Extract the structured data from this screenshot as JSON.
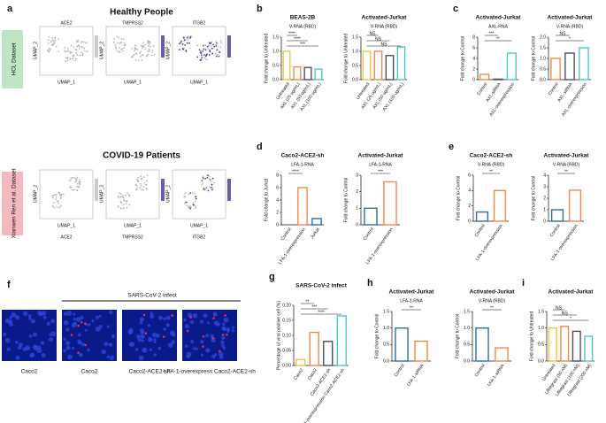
{
  "panel_a": {
    "letter": "a",
    "title_top": "Healthy People",
    "title_bottom": "COVID-19 Patients",
    "dataset_top": "HCL Dataset",
    "dataset_bottom": "Xianwen Ren et al. Dataset",
    "genes": [
      "ACE2",
      "TMPRSS2",
      "ITGB2"
    ],
    "umap_x": "UMAP_1",
    "umap_y": "UMAP_2"
  },
  "panel_f": {
    "letter": "f",
    "group": "SARS-CoV-2 infect",
    "captions": [
      "Caco2",
      "Caco2",
      "Caco2-ACE2-sh",
      "LFA-1-overexpress Caco2-ACE2-sh"
    ]
  },
  "chart_data": [
    {
      "type": "bar",
      "panel": "b",
      "title": "BEAS-2B",
      "subtitle": "V-RNA (RBD)",
      "ylabel": "Fold change to Untreated",
      "categories": [
        "Untreated",
        "AXL (25 ug/mL)",
        "AXL (50 ug/mL)",
        "AXL (100 ug/mL)"
      ],
      "values": [
        1.0,
        0.45,
        0.43,
        0.37
      ],
      "colors": [
        "#f5c242",
        "#f08a4b",
        "#4a5060",
        "#4fc7c9"
      ],
      "ylim": [
        0,
        1.5
      ],
      "yticks": [
        {
          "value": 0,
          "label": "0.0"
        },
        {
          "value": 0.5,
          "label": "0.5"
        },
        {
          "value": 1,
          "label": "1.0"
        },
        {
          "value": 1.5,
          "label": "1.5"
        }
      ],
      "annotations": [
        "****",
        "****",
        "***"
      ]
    },
    {
      "type": "bar",
      "title": "Activated-Jurkat",
      "subtitle": "V-RNA (RBD)",
      "ylabel": "Fold change to Untreated",
      "categories": [
        "Untreated",
        "AXL (25 ug/mL)",
        "AXL (50 ug/mL)",
        "AXL (100 ug/mL)"
      ],
      "values": [
        1.0,
        1.0,
        0.85,
        1.15
      ],
      "colors": [
        "#f5c242",
        "#f08a4b",
        "#4a5060",
        "#4fc7c9"
      ],
      "ylim": [
        0,
        1.5
      ],
      "yticks": [
        {
          "value": 0,
          "label": "0.0"
        },
        {
          "value": 0.5,
          "label": "0.5"
        },
        {
          "value": 1,
          "label": "1.0"
        },
        {
          "value": 1.5,
          "label": "1.5"
        }
      ],
      "annotations": [
        "NS",
        "NS",
        "NS"
      ]
    },
    {
      "type": "bar",
      "panel": "c",
      "title": "Activated-Jurkat",
      "subtitle": "AXL-RNA",
      "ylabel": "Fold change to Control",
      "categories": [
        "Control",
        "AXL-siRNA",
        "AXL-overexpression"
      ],
      "values": [
        1.0,
        0.1,
        5.0
      ],
      "colors": [
        "#f08a4b",
        "#4a5060",
        "#4fc7c9"
      ],
      "ylim": [
        0,
        8
      ],
      "yticks": [
        0,
        2,
        4,
        6,
        8
      ],
      "annotations": [
        "***",
        "**"
      ]
    },
    {
      "type": "bar",
      "title": "Activated-Jurkat",
      "subtitle": "V-RNA (RBD)",
      "ylabel": "Fold change to Control",
      "categories": [
        "Control",
        "AXL-siRNA",
        "AXL-overexpression"
      ],
      "values": [
        1.0,
        1.25,
        1.5
      ],
      "colors": [
        "#f08a4b",
        "#4a5060",
        "#4fc7c9"
      ],
      "ylim": [
        0,
        2
      ],
      "yticks": [
        {
          "value": 0,
          "label": "0.0"
        },
        {
          "value": 0.5,
          "label": "0.5"
        },
        {
          "value": 1,
          "label": "1.0"
        },
        {
          "value": 1.5,
          "label": "1.5"
        },
        {
          "value": 2,
          "label": "2.0"
        }
      ],
      "annotations": [
        "NS",
        "*"
      ]
    },
    {
      "type": "bar",
      "panel": "d",
      "title": "Caco2-ACE2-sh",
      "subtitle": "LFA-1-RNA",
      "ylabel": "Fold change to Jurkat",
      "categories": [
        "Control",
        "LFA-1-overexpression",
        "Jurkat"
      ],
      "values": [
        0,
        6,
        1
      ],
      "colors": [
        "#2e6da4",
        "#f08a4b",
        "#2e6da4"
      ],
      "ylim": [
        0,
        8
      ],
      "yticks": [
        0,
        2,
        4,
        6,
        8
      ],
      "annotations": [
        "****"
      ]
    },
    {
      "type": "bar",
      "title": "Activated-Jurkat",
      "subtitle": "LFA-1-RNA",
      "ylabel": "Fold change to Control",
      "categories": [
        "Control",
        "LFA-1-overexpression"
      ],
      "values": [
        1,
        2.6
      ],
      "colors": [
        "#2e6da4",
        "#f08a4b"
      ],
      "ylim": [
        0,
        3
      ],
      "yticks": [
        0,
        1,
        2,
        3
      ],
      "annotations": [
        "***"
      ]
    },
    {
      "type": "bar",
      "panel": "e",
      "title": "Caco2-ACE2-sh",
      "subtitle": "V-RNA (RBD)",
      "ylabel": "Fold change to Control",
      "categories": [
        "Control",
        "LFA-1-overexpression"
      ],
      "values": [
        1.2,
        4
      ],
      "colors": [
        "#2e6da4",
        "#f08a4b"
      ],
      "ylim": [
        0,
        6
      ],
      "yticks": [
        0,
        2,
        4,
        6
      ],
      "annotations": [
        "**"
      ]
    },
    {
      "type": "bar",
      "title": "Activated-Jurkat",
      "subtitle": "V-RNA (RBD)",
      "ylabel": "Fold change to Control",
      "categories": [
        "Control",
        "LFA-1-overexpression"
      ],
      "values": [
        1,
        2.7
      ],
      "colors": [
        "#2e6da4",
        "#f08a4b"
      ],
      "ylim": [
        0,
        4
      ],
      "yticks": [
        0,
        1,
        2,
        3,
        4
      ],
      "annotations": [
        "**"
      ]
    },
    {
      "type": "bar",
      "panel": "g",
      "title": "SARS-CoV-2 infect",
      "ylabel": "Percentage of viral positive cell (%)",
      "categories": [
        "Caco2",
        "Caco2",
        "Caco2-ACE2-sh",
        "LFA-1-overexpression Caco2-ACE2-sh"
      ],
      "values": [
        0.02,
        0.11,
        0.08,
        0.165
      ],
      "colors": [
        "#f5c242",
        "#f08a4b",
        "#4a5060",
        "#4fc7c9"
      ],
      "ylim": [
        0,
        0.2
      ],
      "yticks": [
        {
          "value": 0,
          "label": "0.00"
        },
        {
          "value": 0.05,
          "label": "0.05"
        },
        {
          "value": 0.1,
          "label": "0.10"
        },
        {
          "value": 0.15,
          "label": "0.15"
        },
        {
          "value": 0.2,
          "label": "0.20"
        }
      ],
      "annotations": [
        "**",
        "***",
        "****"
      ]
    },
    {
      "type": "bar",
      "panel": "h",
      "title": "Activated-Jurkat",
      "subtitle": "LFA-1-RNA",
      "ylabel": "Fold change to Control",
      "categories": [
        "Control",
        "LFA-1-siRNA"
      ],
      "values": [
        1.0,
        0.6
      ],
      "colors": [
        "#2e6da4",
        "#f08a4b"
      ],
      "ylim": [
        0,
        1.5
      ],
      "yticks": [
        {
          "value": 0,
          "label": "0.0"
        },
        {
          "value": 0.5,
          "label": "0.5"
        },
        {
          "value": 1,
          "label": "1.0"
        },
        {
          "value": 1.5,
          "label": "1.5"
        }
      ],
      "annotations": [
        "**"
      ]
    },
    {
      "type": "bar",
      "title": "Activated-Jurkat",
      "subtitle": "V-RNA (RBD)",
      "ylabel": "Fold change to Control",
      "categories": [
        "Control",
        "LFA-1-siRNA"
      ],
      "values": [
        1.0,
        0.4
      ],
      "colors": [
        "#2e6da4",
        "#f08a4b"
      ],
      "ylim": [
        0,
        1.5
      ],
      "yticks": [
        {
          "value": 0,
          "label": "0.0"
        },
        {
          "value": 0.5,
          "label": "0.5"
        },
        {
          "value": 1,
          "label": "1.0"
        },
        {
          "value": 1.5,
          "label": "1.5"
        }
      ],
      "annotations": [
        "**"
      ]
    },
    {
      "type": "bar",
      "panel": "i",
      "title": "Activated-Jurkat",
      "ylabel": "Fold change to Untreated",
      "categories": [
        "Untreated",
        "Lifitegrast (50 nM)",
        "Lifitegrast (100 nM)",
        "Lifitegrast (200 nM)"
      ],
      "values": [
        1.0,
        1.05,
        0.9,
        0.75
      ],
      "colors": [
        "#f5c242",
        "#f08a4b",
        "#4a5060",
        "#4fc7c9"
      ],
      "ylim": [
        0,
        1.5
      ],
      "yticks": [
        {
          "value": 0,
          "label": "0.0"
        },
        {
          "value": 0.5,
          "label": "0.5"
        },
        {
          "value": 1,
          "label": "1.0"
        },
        {
          "value": 1.5,
          "label": "1.5"
        }
      ],
      "annotations": [
        "NS",
        "NS",
        "*"
      ]
    }
  ]
}
